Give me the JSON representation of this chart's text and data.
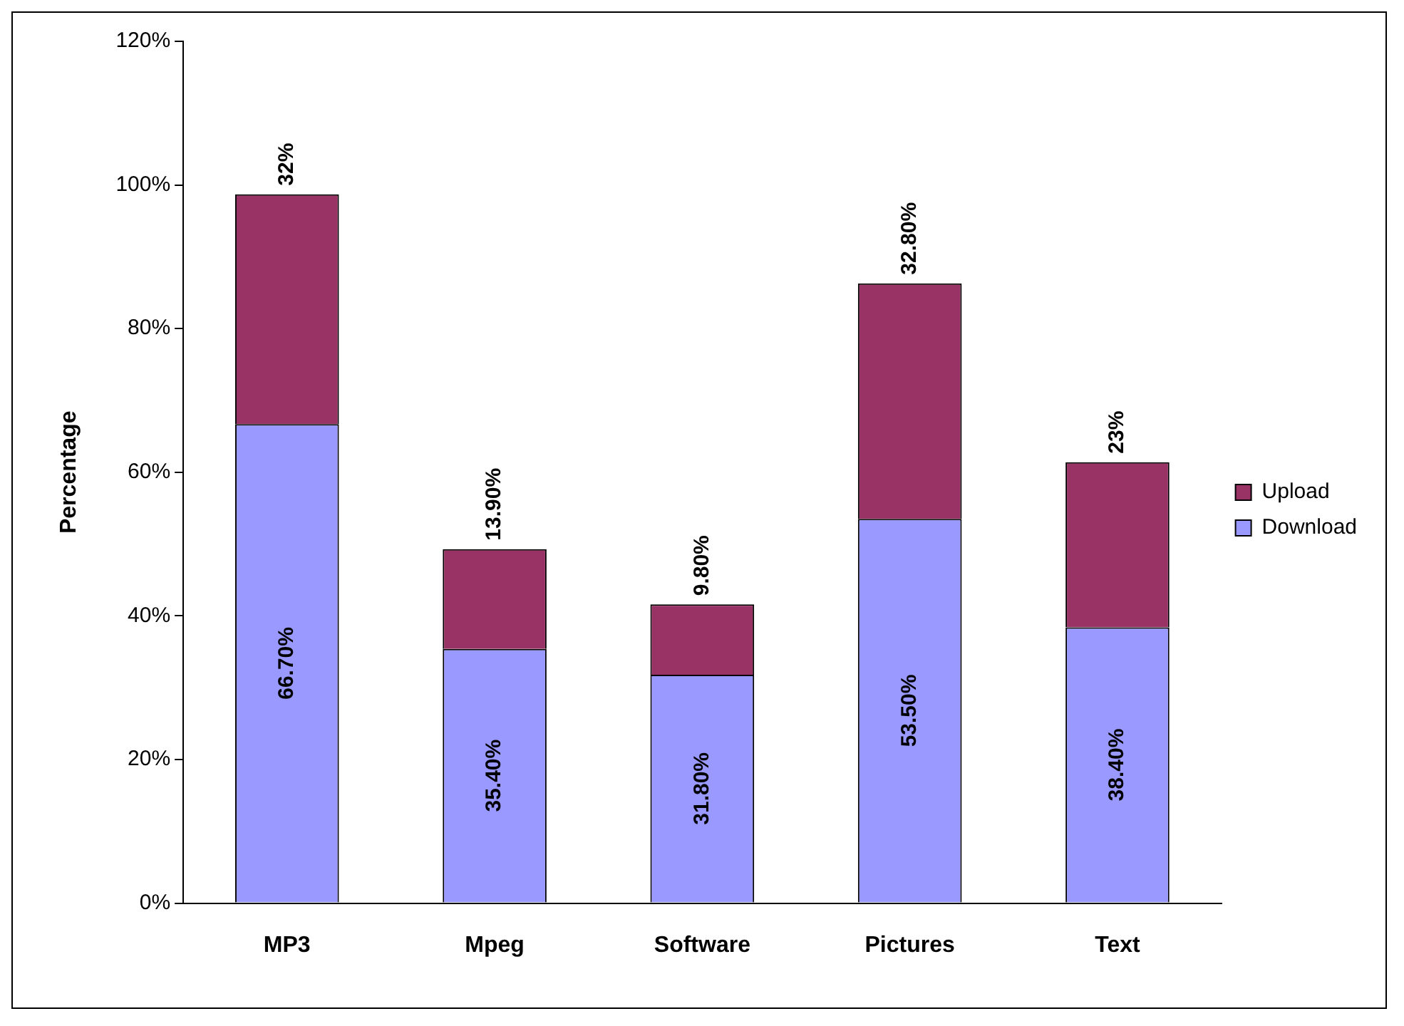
{
  "chart_data": {
    "type": "bar",
    "stacked": true,
    "ylabel": "Percentage",
    "categories": [
      "MP3",
      "Mpeg",
      "Software",
      "Pictures",
      "Text"
    ],
    "series": [
      {
        "name": "Download",
        "color": "#9999ff",
        "values": [
          66.7,
          35.4,
          31.8,
          53.5,
          38.4
        ],
        "value_labels": [
          "66.70%",
          "35.40%",
          "31.80%",
          "53.50%",
          "38.40%"
        ]
      },
      {
        "name": "Upload",
        "color": "#993366",
        "values": [
          32,
          13.9,
          9.8,
          32.8,
          23
        ],
        "value_labels": [
          "32%",
          "13.90%",
          "9.80%",
          "32.80%",
          "23%"
        ]
      }
    ],
    "ylim": [
      0,
      120
    ],
    "yticks": [
      {
        "value": 0,
        "label": "0%"
      },
      {
        "value": 20,
        "label": "20%"
      },
      {
        "value": 40,
        "label": "40%"
      },
      {
        "value": 60,
        "label": "60%"
      },
      {
        "value": 80,
        "label": "80%"
      },
      {
        "value": 100,
        "label": "100%"
      },
      {
        "value": 120,
        "label": "120%"
      }
    ],
    "grid": false,
    "legend": "right"
  }
}
